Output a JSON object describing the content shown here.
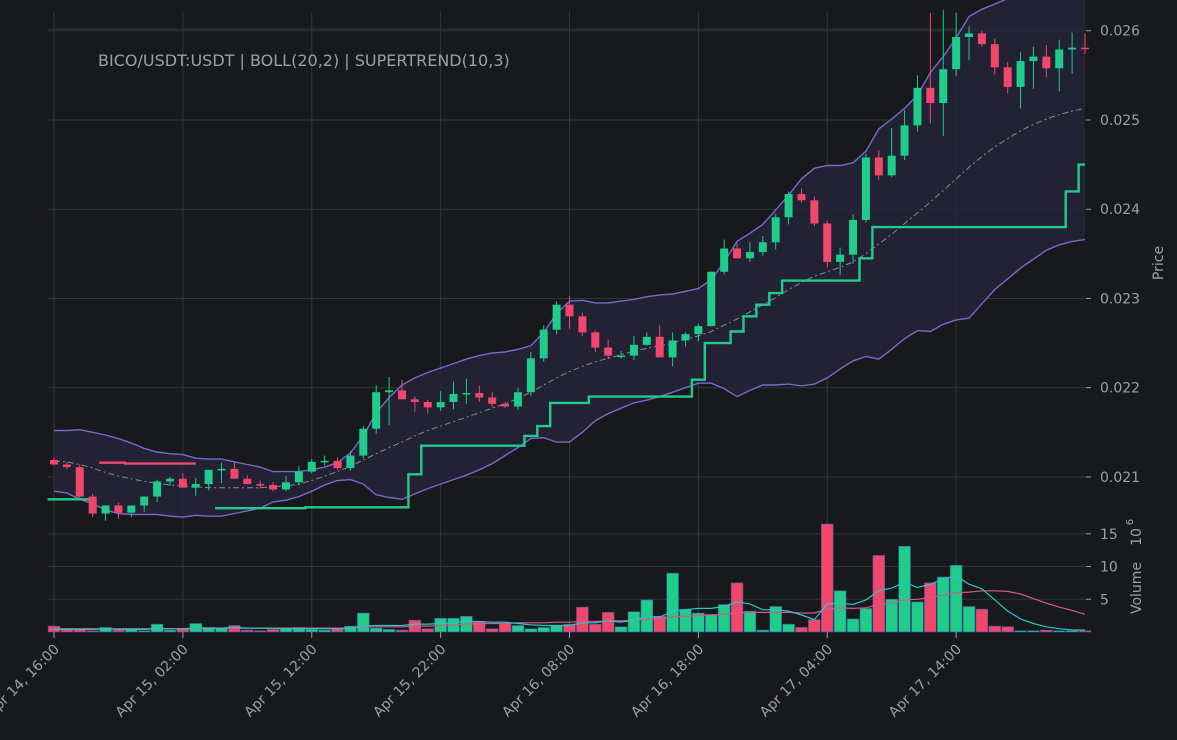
{
  "title": "BICO/USDT:USDT | BOLL(20,2) | SUPERTREND(10,3)",
  "colors": {
    "background": "#17191d",
    "grid": "#2c3a36",
    "up": "#1fcc8a",
    "down": "#f2476d",
    "boll_band": "#7b68c8",
    "boll_fill": "#252538",
    "boll_mid": "#8a8a96",
    "supertrend_up": "#1fcc8a",
    "supertrend_down": "#f2476d",
    "volume_ma_long": "#d45a8a",
    "volume_ma_short": "#2ec4c4",
    "text": "#9aa0a6"
  },
  "axes": {
    "price_label": "Price",
    "volume_label": "Volume",
    "volume_multiplier": "10",
    "volume_exponent": "6",
    "price_ticks": [
      "0.021",
      "0.022",
      "0.023",
      "0.024",
      "0.025",
      "0.026"
    ],
    "volume_ticks": [
      "5",
      "10",
      "15"
    ],
    "time_ticks": [
      "Apr 14, 16:00",
      "Apr 15, 02:00",
      "Apr 15, 12:00",
      "Apr 15, 22:00",
      "Apr 16, 08:00",
      "Apr 16, 18:00",
      "Apr 17, 04:00",
      "Apr 17, 14:00"
    ]
  },
  "chart_data": {
    "type": "candlestick",
    "title": "BICO/USDT:USDT | BOLL(20,2) | SUPERTREND(10,3)",
    "ylabel": "Price",
    "volume_label": "Volume 10^6",
    "ylim": [
      0.02054,
      0.02621
    ],
    "volume_ylim": [
      0,
      16.5
    ],
    "grid": true,
    "interval": "1h",
    "start": "Apr 14, 16:00",
    "open": [
      0.02119,
      0.02114,
      0.02111,
      0.02078,
      0.02059,
      0.02068,
      0.0206,
      0.02068,
      0.02078,
      0.02095,
      0.02098,
      0.02088,
      0.02092,
      0.02108,
      0.02109,
      0.02098,
      0.02092,
      0.02091,
      0.02086,
      0.02094,
      0.02106,
      0.02117,
      0.02118,
      0.0211,
      0.02124,
      0.02154,
      0.02195,
      0.02197,
      0.02187,
      0.02184,
      0.02178,
      0.02184,
      0.02193,
      0.02194,
      0.02189,
      0.02182,
      0.02179,
      0.02195,
      0.02233,
      0.02265,
      0.02293,
      0.0228,
      0.02262,
      0.02245,
      0.02236,
      0.02236,
      0.02248,
      0.02257,
      0.02234,
      0.02253,
      0.0226,
      0.02269,
      0.0233,
      0.02356,
      0.02345,
      0.02352,
      0.02363,
      0.02391,
      0.02417,
      0.0241,
      0.02384,
      0.02341,
      0.02349,
      0.02388,
      0.02458,
      0.02438,
      0.0246,
      0.02494,
      0.02536,
      0.02519,
      0.02557,
      0.02593,
      0.02597,
      0.02585,
      0.02559,
      0.02537,
      0.02566,
      0.02571,
      0.02558,
      0.02579,
      0.02581
    ]
  },
  "ohlc_hi_lo": {
    "high": [
      0.02122,
      0.02117,
      0.02114,
      0.02081,
      0.02063,
      0.02071,
      0.02064,
      0.02072,
      0.02097,
      0.021,
      0.02104,
      0.02099,
      0.02099,
      0.02116,
      0.02116,
      0.02102,
      0.02096,
      0.02094,
      0.02101,
      0.02112,
      0.0212,
      0.02124,
      0.02122,
      0.02129,
      0.02157,
      0.02203,
      0.02212,
      0.02209,
      0.0219,
      0.02186,
      0.02196,
      0.02207,
      0.0221,
      0.02202,
      0.02195,
      0.02184,
      0.022,
      0.0224,
      0.0227,
      0.02297,
      0.02303,
      0.02284,
      0.02264,
      0.02254,
      0.02241,
      0.02258,
      0.02262,
      0.0227,
      0.02262,
      0.02262,
      0.02272,
      0.0233,
      0.02366,
      0.02362,
      0.02363,
      0.0237,
      0.02395,
      0.0242,
      0.02423,
      0.02414,
      0.02387,
      0.02357,
      0.02394,
      0.02462,
      0.02466,
      0.02491,
      0.02511,
      0.0255,
      0.0262,
      0.02623,
      0.0262,
      0.02605,
      0.026,
      0.02591,
      0.02565,
      0.02576,
      0.02582,
      0.02584,
      0.0259,
      0.02598,
      0.02597
    ],
    "low": [
      0.02113,
      0.02109,
      0.02075,
      0.02055,
      0.02051,
      0.02053,
      0.02055,
      0.02061,
      0.02072,
      0.0209,
      0.02091,
      0.02079,
      0.02085,
      0.02093,
      0.02105,
      0.02094,
      0.02087,
      0.02084,
      0.02084,
      0.02091,
      0.02104,
      0.02113,
      0.02108,
      0.02107,
      0.02121,
      0.02148,
      0.02158,
      0.02188,
      0.02173,
      0.02171,
      0.02174,
      0.02176,
      0.02182,
      0.02184,
      0.02178,
      0.02177,
      0.02175,
      0.02191,
      0.02229,
      0.0226,
      0.02266,
      0.02258,
      0.0224,
      0.02232,
      0.02233,
      0.02231,
      0.02247,
      0.02238,
      0.02224,
      0.02246,
      0.02252,
      0.02269,
      0.02327,
      0.02351,
      0.02341,
      0.02348,
      0.02355,
      0.02383,
      0.02407,
      0.02381,
      0.02335,
      0.02326,
      0.02339,
      0.02385,
      0.02433,
      0.02436,
      0.02455,
      0.02487,
      0.02496,
      0.02482,
      0.02549,
      0.02567,
      0.02582,
      0.02551,
      0.0253,
      0.02513,
      0.02535,
      0.02548,
      0.02532,
      0.02552,
      0.02574
    ],
    "close": [
      0.02114,
      0.02111,
      0.02078,
      0.02059,
      0.02068,
      0.0206,
      0.02068,
      0.02078,
      0.02095,
      0.02098,
      0.02088,
      0.02092,
      0.02108,
      0.02109,
      0.02098,
      0.02092,
      0.02091,
      0.02086,
      0.02094,
      0.02106,
      0.02117,
      0.02118,
      0.0211,
      0.02124,
      0.02154,
      0.02195,
      0.02197,
      0.02187,
      0.02184,
      0.02178,
      0.02184,
      0.02193,
      0.02194,
      0.02189,
      0.02182,
      0.02179,
      0.02195,
      0.02233,
      0.02265,
      0.02293,
      0.0228,
      0.02262,
      0.02245,
      0.02236,
      0.02236,
      0.02248,
      0.02257,
      0.02234,
      0.02253,
      0.0226,
      0.02269,
      0.0233,
      0.02356,
      0.02345,
      0.02352,
      0.02363,
      0.02391,
      0.02417,
      0.0241,
      0.02384,
      0.02341,
      0.02349,
      0.02388,
      0.02458,
      0.02438,
      0.0246,
      0.02494,
      0.02536,
      0.02519,
      0.02557,
      0.02593,
      0.02597,
      0.02585,
      0.02559,
      0.02537,
      0.02566,
      0.02571,
      0.02558,
      0.02579,
      0.02581,
      0.0258
    ],
    "volume": [
      0.9,
      0.5,
      0.4,
      0.2,
      0.7,
      0.3,
      0.4,
      0.2,
      1.2,
      0.3,
      0.5,
      1.3,
      0.7,
      0.6,
      1.0,
      0.3,
      0.2,
      0.4,
      0.6,
      0.7,
      0.4,
      0.3,
      0.5,
      0.9,
      2.9,
      0.6,
      0.4,
      0.3,
      1.8,
      0.5,
      2.1,
      2.1,
      2.4,
      1.6,
      0.5,
      1.4,
      1.0,
      0.5,
      0.7,
      1.0,
      1.2,
      3.8,
      1.2,
      3.0,
      0.8,
      3.1,
      4.9,
      2.4,
      9.0,
      3.5,
      2.9,
      2.7,
      4.2,
      7.5,
      3.2,
      0.3,
      3.9,
      1.2,
      0.7,
      1.9,
      16.5,
      6.3,
      2.0,
      3.6,
      11.7,
      5.0,
      13.1,
      4.6,
      7.5,
      8.4,
      10.2,
      3.9,
      3.5,
      0.9,
      0.8,
      0.2,
      0.2,
      0.3,
      0.2,
      0.2,
      0.2
    ]
  },
  "indicators": {
    "boll_upper": [
      0.02152,
      0.02152,
      0.02153,
      0.0215,
      0.02147,
      0.02143,
      0.02138,
      0.02132,
      0.02128,
      0.02126,
      0.02125,
      0.02121,
      0.0212,
      0.0212,
      0.02117,
      0.02114,
      0.02111,
      0.02106,
      0.02106,
      0.02106,
      0.02108,
      0.02111,
      0.02116,
      0.02127,
      0.02146,
      0.02172,
      0.02189,
      0.02203,
      0.02211,
      0.02217,
      0.02222,
      0.02227,
      0.02232,
      0.02236,
      0.02239,
      0.0224,
      0.02243,
      0.02247,
      0.02262,
      0.02283,
      0.02297,
      0.02298,
      0.02295,
      0.02295,
      0.02297,
      0.02299,
      0.02302,
      0.02304,
      0.02305,
      0.02308,
      0.02311,
      0.02321,
      0.02341,
      0.02364,
      0.02373,
      0.02383,
      0.02399,
      0.02416,
      0.02434,
      0.02446,
      0.02449,
      0.02449,
      0.02452,
      0.02465,
      0.0249,
      0.02501,
      0.02513,
      0.02528,
      0.02553,
      0.02571,
      0.02592,
      0.02616,
      0.02624,
      0.0263,
      0.02636,
      0.02642,
      0.02646,
      0.02648,
      0.02652,
      0.02656,
      0.0266
    ],
    "boll_mid": [
      0.02118,
      0.02117,
      0.02114,
      0.0211,
      0.02105,
      0.02101,
      0.02098,
      0.02095,
      0.02093,
      0.02091,
      0.0209,
      0.02089,
      0.02088,
      0.02088,
      0.02088,
      0.02088,
      0.02088,
      0.02089,
      0.0209,
      0.02092,
      0.02096,
      0.02101,
      0.02106,
      0.02112,
      0.02119,
      0.02126,
      0.02133,
      0.02139,
      0.02146,
      0.02152,
      0.02157,
      0.02162,
      0.02167,
      0.02172,
      0.02177,
      0.02182,
      0.02188,
      0.02195,
      0.02203,
      0.02211,
      0.02218,
      0.02224,
      0.02229,
      0.02233,
      0.02237,
      0.02241,
      0.02244,
      0.02247,
      0.0225,
      0.02254,
      0.02258,
      0.02263,
      0.0227,
      0.02277,
      0.02285,
      0.02293,
      0.02301,
      0.0231,
      0.02318,
      0.02325,
      0.0233,
      0.02335,
      0.02341,
      0.0235,
      0.02361,
      0.02372,
      0.02384,
      0.02396,
      0.02408,
      0.02421,
      0.02434,
      0.02447,
      0.02459,
      0.0247,
      0.02479,
      0.02488,
      0.02495,
      0.02501,
      0.02506,
      0.0251,
      0.02513
    ],
    "boll_lower": [
      0.02084,
      0.02082,
      0.02075,
      0.0207,
      0.02063,
      0.02059,
      0.02058,
      0.02058,
      0.02058,
      0.02056,
      0.02055,
      0.02057,
      0.02056,
      0.02056,
      0.02059,
      0.02062,
      0.02065,
      0.02072,
      0.02074,
      0.02078,
      0.02084,
      0.02091,
      0.02096,
      0.02097,
      0.02092,
      0.0208,
      0.02077,
      0.02075,
      0.02081,
      0.02087,
      0.02092,
      0.02097,
      0.02102,
      0.02108,
      0.02115,
      0.02124,
      0.02133,
      0.02143,
      0.02144,
      0.02139,
      0.02139,
      0.0215,
      0.02163,
      0.02171,
      0.02177,
      0.02183,
      0.02186,
      0.0219,
      0.02195,
      0.022,
      0.02205,
      0.02205,
      0.02199,
      0.0219,
      0.02197,
      0.02203,
      0.02203,
      0.02204,
      0.02202,
      0.02204,
      0.02211,
      0.02221,
      0.0223,
      0.02235,
      0.02232,
      0.02243,
      0.02255,
      0.02264,
      0.02263,
      0.02271,
      0.02276,
      0.02278,
      0.02294,
      0.0231,
      0.02322,
      0.02334,
      0.02344,
      0.02354,
      0.0236,
      0.02364,
      0.02366
    ],
    "supertrend": [
      0.02075,
      0.02075,
      0.02075,
      0.02075,
      0.02116,
      0.02116,
      0.02115,
      0.02115,
      0.02115,
      0.02115,
      0.02115,
      0.02115,
      null,
      0.02065,
      0.02065,
      0.02065,
      0.02065,
      0.02065,
      0.02065,
      0.02065,
      0.02066,
      0.02066,
      0.02066,
      0.02066,
      0.02066,
      0.02066,
      0.02066,
      0.02066,
      0.02103,
      0.02135,
      0.02135,
      0.02135,
      0.02135,
      0.02135,
      0.02135,
      0.02135,
      0.02135,
      0.02146,
      0.02157,
      0.02183,
      0.02183,
      0.02183,
      0.0219,
      0.0219,
      0.0219,
      0.0219,
      0.0219,
      0.0219,
      0.0219,
      0.0219,
      0.02209,
      0.0225,
      0.0225,
      0.02263,
      0.0228,
      0.02293,
      0.02306,
      0.0232,
      0.0232,
      0.0232,
      0.0232,
      0.0232,
      0.0232,
      0.02345,
      0.0238,
      0.0238,
      0.0238,
      0.0238,
      0.0238,
      0.0238,
      0.0238,
      0.0238,
      0.0238,
      0.0238,
      0.0238,
      0.0238,
      0.0238,
      0.0238,
      0.0238,
      0.0242,
      0.0245
    ],
    "supertrend_direction": [
      "up",
      "up",
      "up",
      "up",
      "down",
      "down",
      "down",
      "down",
      "down",
      "down",
      "down",
      "down",
      null,
      "up",
      "up",
      "up",
      "up",
      "up",
      "up",
      "up",
      "up",
      "up",
      "up",
      "up",
      "up",
      "up",
      "up",
      "up",
      "up",
      "up",
      "up",
      "up",
      "up",
      "up",
      "up",
      "up",
      "up",
      "up",
      "up",
      "up",
      "up",
      "up",
      "up",
      "up",
      "up",
      "up",
      "up",
      "up",
      "up",
      "up",
      "up",
      "up",
      "up",
      "up",
      "up",
      "up",
      "up",
      "up",
      "up",
      "up",
      "up",
      "up",
      "up",
      "up",
      "up",
      "up",
      "up",
      "up",
      "up",
      "up",
      "up",
      "up",
      "up",
      "up",
      "up",
      "up",
      "up",
      "up",
      "up",
      "up",
      "up"
    ],
    "volume_ma_short": [
      0.4,
      0.4,
      0.4,
      0.4,
      0.5,
      0.4,
      0.4,
      0.4,
      0.5,
      0.5,
      0.5,
      0.6,
      0.6,
      0.6,
      0.7,
      0.6,
      0.6,
      0.6,
      0.5,
      0.5,
      0.5,
      0.5,
      0.5,
      0.6,
      0.9,
      1.0,
      1.0,
      1.0,
      1.2,
      1.2,
      1.3,
      1.4,
      1.6,
      1.6,
      1.5,
      1.5,
      1.3,
      1.1,
      1.0,
      1.0,
      1.0,
      1.4,
      1.4,
      1.7,
      1.5,
      1.8,
      2.3,
      2.3,
      3.1,
      3.4,
      3.6,
      3.6,
      3.9,
      4.6,
      4.3,
      3.4,
      3.4,
      3.2,
      2.6,
      1.9,
      4.3,
      4.4,
      4.2,
      4.9,
      6.3,
      6.7,
      7.6,
      6.8,
      7.3,
      8.1,
      8.6,
      7.3,
      6.6,
      4.9,
      3.2,
      2.0,
      1.3,
      0.8,
      0.5,
      0.3,
      0.3
    ],
    "volume_ma_long": [
      0.5,
      0.5,
      0.5,
      0.5,
      0.5,
      0.5,
      0.5,
      0.5,
      0.5,
      0.5,
      0.5,
      0.5,
      0.5,
      0.6,
      0.6,
      0.6,
      0.6,
      0.6,
      0.6,
      0.6,
      0.6,
      0.6,
      0.6,
      0.6,
      0.8,
      0.8,
      0.8,
      0.8,
      0.9,
      0.9,
      1.0,
      1.1,
      1.2,
      1.3,
      1.3,
      1.3,
      1.4,
      1.4,
      1.4,
      1.5,
      1.5,
      1.6,
      1.6,
      1.7,
      1.7,
      1.8,
      2.0,
      2.0,
      2.3,
      2.4,
      2.5,
      2.6,
      2.7,
      2.9,
      3.0,
      3.0,
      3.0,
      3.0,
      2.9,
      2.9,
      3.5,
      3.7,
      3.6,
      3.7,
      4.2,
      4.4,
      4.9,
      5.0,
      5.3,
      5.6,
      6.0,
      6.1,
      6.3,
      6.3,
      6.2,
      5.8,
      5.1,
      4.4,
      3.8,
      3.3,
      2.7
    ]
  }
}
